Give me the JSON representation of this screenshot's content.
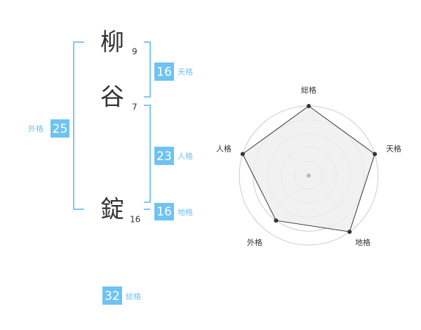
{
  "name": {
    "characters": [
      {
        "char": "柳",
        "strokes": 9
      },
      {
        "char": "谷",
        "strokes": 7
      },
      {
        "char": "錠",
        "strokes": 16
      }
    ]
  },
  "fortune": {
    "tenkaku": {
      "value": 16,
      "label": "天格"
    },
    "jinkaku": {
      "value": 23,
      "label": "人格"
    },
    "chikaku": {
      "value": 16,
      "label": "地格"
    },
    "gaikaku": {
      "value": 25,
      "label": "外格"
    },
    "soukaku": {
      "value": 32,
      "label": "総格"
    }
  },
  "chart_data": {
    "type": "radar",
    "categories": [
      "総格",
      "天格",
      "地格",
      "外格",
      "人格"
    ],
    "values": [
      5,
      5,
      5,
      4,
      5
    ],
    "rlim": [
      0,
      5
    ],
    "rticks": [
      1,
      2,
      3,
      4,
      5
    ],
    "color": "#333333",
    "fill": "#eeeeee"
  }
}
